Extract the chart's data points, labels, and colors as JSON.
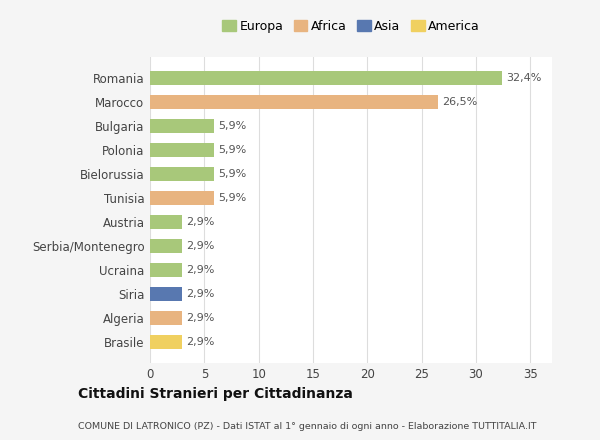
{
  "countries": [
    "Romania",
    "Marocco",
    "Bulgaria",
    "Polonia",
    "Bielorussia",
    "Tunisia",
    "Austria",
    "Serbia/Montenegro",
    "Ucraina",
    "Siria",
    "Algeria",
    "Brasile"
  ],
  "values": [
    32.4,
    26.5,
    5.9,
    5.9,
    5.9,
    5.9,
    2.9,
    2.9,
    2.9,
    2.9,
    2.9,
    2.9
  ],
  "labels": [
    "32,4%",
    "26,5%",
    "5,9%",
    "5,9%",
    "5,9%",
    "5,9%",
    "2,9%",
    "2,9%",
    "2,9%",
    "2,9%",
    "2,9%",
    "2,9%"
  ],
  "colors": [
    "#a8c87a",
    "#e8b480",
    "#a8c87a",
    "#a8c87a",
    "#a8c87a",
    "#e8b480",
    "#a8c87a",
    "#a8c87a",
    "#a8c87a",
    "#5878b0",
    "#e8b480",
    "#f0d060"
  ],
  "legend_labels": [
    "Europa",
    "Africa",
    "Asia",
    "America"
  ],
  "legend_colors": [
    "#a8c87a",
    "#e8b480",
    "#5878b0",
    "#f0d060"
  ],
  "title1": "Cittadini Stranieri per Cittadinanza",
  "title2": "COMUNE DI LATRONICO (PZ) - Dati ISTAT al 1° gennaio di ogni anno - Elaborazione TUTTITALIA.IT",
  "xlim": [
    0,
    37
  ],
  "xticks": [
    0,
    5,
    10,
    15,
    20,
    25,
    30,
    35
  ],
  "background_color": "#f5f5f5",
  "bar_background": "#ffffff",
  "grid_color": "#dddddd"
}
